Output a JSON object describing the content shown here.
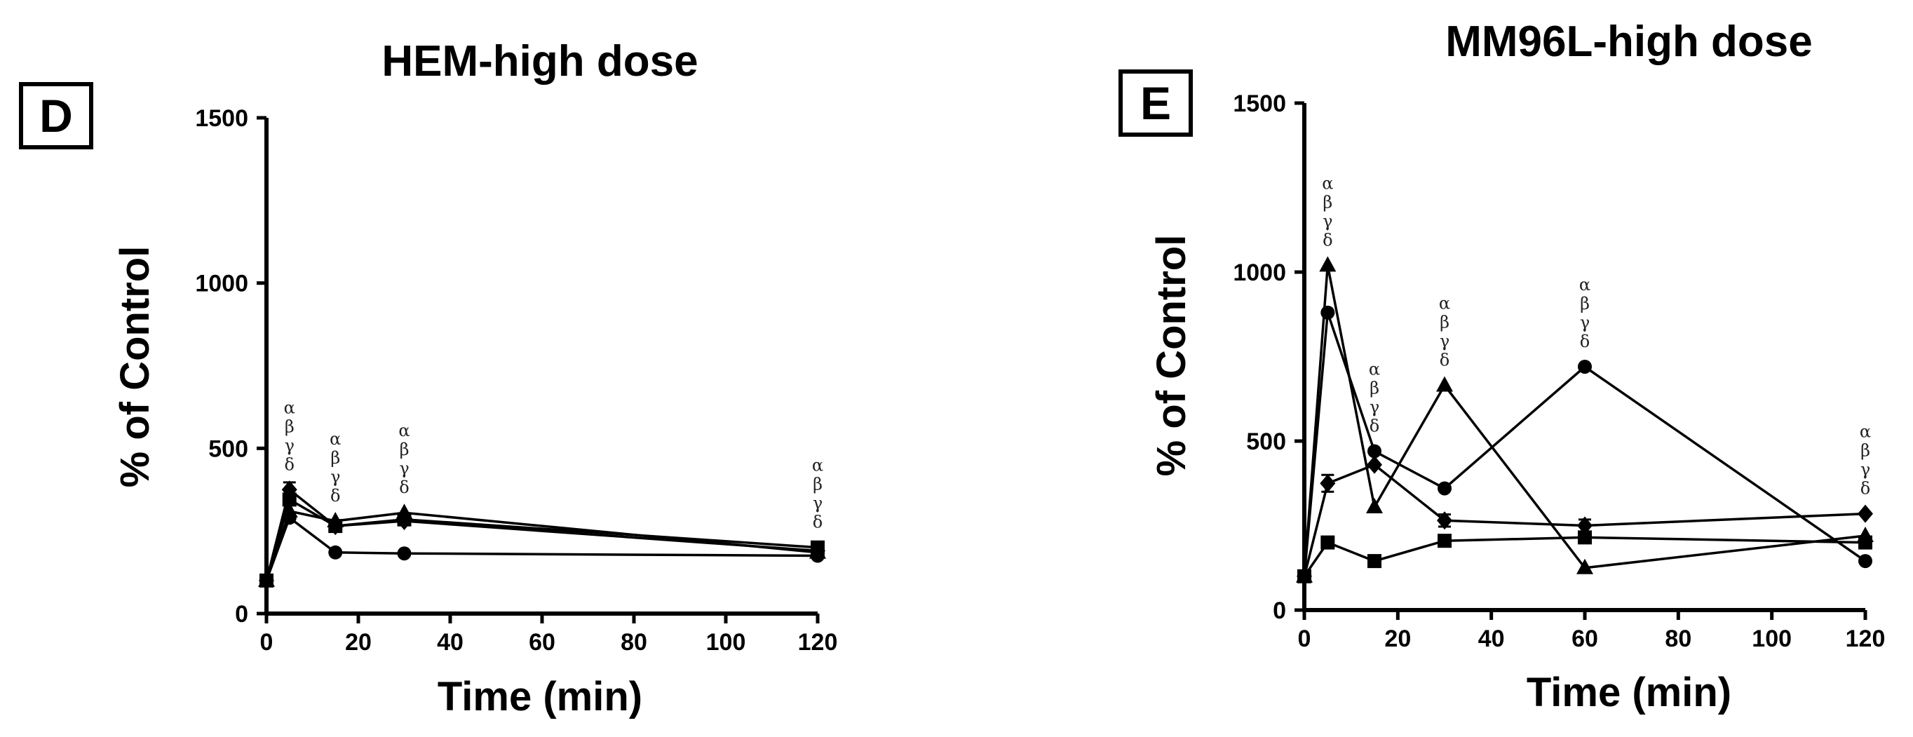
{
  "chart_data": [
    {
      "type": "line",
      "panel_label": "D",
      "title": "HEM-high dose",
      "xlabel": "Time (min)",
      "ylabel": "% of Control",
      "xlim": [
        0,
        120
      ],
      "ylim": [
        0,
        1500
      ],
      "xticks": [
        "0",
        "20",
        "40",
        "60",
        "80",
        "100",
        "120"
      ],
      "yticks": [
        "0",
        "500",
        "1000",
        "1500"
      ],
      "grid": false,
      "series": [
        {
          "marker": "circle",
          "x": [
            0,
            5,
            15,
            30,
            120
          ],
          "y": [
            100,
            290,
            185,
            182,
            175
          ]
        },
        {
          "marker": "square",
          "x": [
            0,
            5,
            15,
            30,
            120
          ],
          "y": [
            100,
            345,
            265,
            285,
            200
          ]
        },
        {
          "marker": "triangle",
          "x": [
            0,
            5,
            15,
            30,
            120
          ],
          "y": [
            100,
            310,
            280,
            305,
            185
          ]
        },
        {
          "marker": "diamond",
          "x": [
            0,
            5,
            15,
            30,
            120
          ],
          "y": [
            100,
            375,
            265,
            280,
            190
          ]
        }
      ],
      "error_bars": [
        {
          "x": 5,
          "y": 375,
          "err": 22
        },
        {
          "x": 120,
          "y": 200,
          "err": 12
        }
      ],
      "annotations": [
        {
          "x": 5,
          "y": 375,
          "lines": [
            "α",
            "β",
            "γ",
            "δ"
          ]
        },
        {
          "x": 15,
          "y": 280,
          "lines": [
            "α",
            "β",
            "γ",
            "δ"
          ]
        },
        {
          "x": 30,
          "y": 305,
          "lines": [
            "α",
            "β",
            "γ",
            "δ"
          ]
        },
        {
          "x": 120,
          "y": 200,
          "lines": [
            "α",
            "β",
            "γ",
            "δ"
          ]
        }
      ]
    },
    {
      "type": "line",
      "panel_label": "E",
      "title": "MM96L-high dose",
      "xlabel": "Time (min)",
      "ylabel": "% of Control",
      "xlim": [
        0,
        120
      ],
      "ylim": [
        0,
        1500
      ],
      "xticks": [
        "0",
        "20",
        "40",
        "60",
        "80",
        "100",
        "120"
      ],
      "yticks": [
        "0",
        "500",
        "1000",
        "1500"
      ],
      "grid": false,
      "series": [
        {
          "marker": "circle",
          "x": [
            0,
            5,
            15,
            30,
            60,
            120
          ],
          "y": [
            100,
            880,
            470,
            360,
            720,
            145
          ]
        },
        {
          "marker": "square",
          "x": [
            0,
            5,
            15,
            30,
            60,
            120
          ],
          "y": [
            100,
            200,
            145,
            205,
            215,
            200
          ]
        },
        {
          "marker": "triangle",
          "x": [
            0,
            5,
            15,
            30,
            60,
            120
          ],
          "y": [
            100,
            1020,
            305,
            665,
            125,
            220
          ]
        },
        {
          "marker": "diamond",
          "x": [
            0,
            5,
            15,
            30,
            60,
            120
          ],
          "y": [
            100,
            375,
            430,
            265,
            250,
            285
          ]
        }
      ],
      "error_bars": [
        {
          "x": 5,
          "y": 375,
          "err": 25
        },
        {
          "x": 30,
          "y": 265,
          "err": 18
        },
        {
          "x": 60,
          "y": 250,
          "err": 18
        }
      ],
      "annotations": [
        {
          "x": 5,
          "y": 1020,
          "lines": [
            "α",
            "β",
            "γ",
            "δ"
          ]
        },
        {
          "x": 15,
          "y": 470,
          "lines": [
            "α",
            "β",
            "γ",
            "δ"
          ]
        },
        {
          "x": 30,
          "y": 665,
          "lines": [
            "α",
            "β",
            "γ",
            "δ"
          ]
        },
        {
          "x": 60,
          "y": 720,
          "lines": [
            "α",
            "β",
            "γ",
            "δ"
          ]
        },
        {
          "x": 120,
          "y": 285,
          "lines": [
            "α",
            "β",
            "γ",
            "δ"
          ]
        }
      ]
    }
  ]
}
